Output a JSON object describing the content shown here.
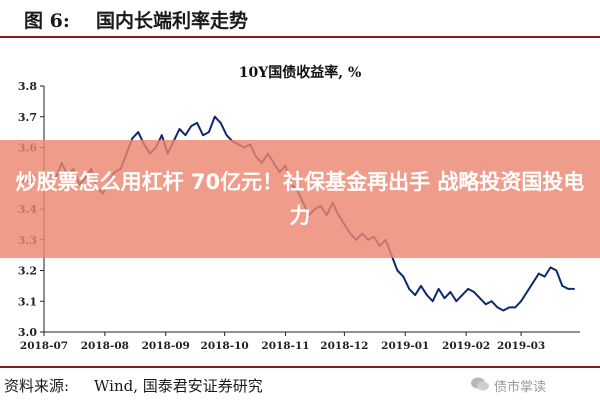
{
  "header": {
    "figure_number": "图 6:",
    "figure_title": "国内长端利率走势"
  },
  "banner": {
    "text": "炒股票怎么用杠杆 70亿元！社保基金再出手 战略投资国投电力"
  },
  "footer": {
    "source_label": "资料来源:",
    "source_value": "Wind, 国泰君安证券研究",
    "watermark": "债市掌读"
  },
  "colors": {
    "series": "#0e2a6e",
    "rule": "#8a1a1a",
    "banner": "#eb8670"
  },
  "chart_data": {
    "type": "line",
    "title": "10Y国债收益率, %",
    "xlabel": "",
    "ylabel": "",
    "ylim": [
      3.0,
      3.8
    ],
    "yticks": [
      "3.0",
      "3.1",
      "3.2",
      "3.3",
      "3.4",
      "3.5",
      "3.6",
      "3.7",
      "3.8"
    ],
    "xlim": [
      "2018-07-01",
      "2019-03-31"
    ],
    "xticks": [
      "2018-07",
      "2018-08",
      "2018-09",
      "2018-10",
      "2018-11",
      "2018-12",
      "2019-01",
      "2019-02",
      "2019-03"
    ],
    "grid": false,
    "series": [
      {
        "x": [
          "2018-07-01",
          "2018-07-04",
          "2018-07-07",
          "2018-07-10",
          "2018-07-13",
          "2018-07-16",
          "2018-07-19",
          "2018-07-22",
          "2018-07-25",
          "2018-07-28",
          "2018-07-31",
          "2018-08-03",
          "2018-08-06",
          "2018-08-09",
          "2018-08-12",
          "2018-08-15",
          "2018-08-18",
          "2018-08-21",
          "2018-08-24",
          "2018-08-27",
          "2018-08-30",
          "2018-09-02",
          "2018-09-05",
          "2018-09-08",
          "2018-09-11",
          "2018-09-14",
          "2018-09-17",
          "2018-09-20",
          "2018-09-23",
          "2018-09-26",
          "2018-09-29",
          "2018-10-02",
          "2018-10-05",
          "2018-10-08",
          "2018-10-11",
          "2018-10-14",
          "2018-10-17",
          "2018-10-20",
          "2018-10-23",
          "2018-10-26",
          "2018-10-29",
          "2018-11-01",
          "2018-11-04",
          "2018-11-07",
          "2018-11-10",
          "2018-11-13",
          "2018-11-16",
          "2018-11-19",
          "2018-11-22",
          "2018-11-25",
          "2018-11-28",
          "2018-12-01",
          "2018-12-04",
          "2018-12-07",
          "2018-12-10",
          "2018-12-13",
          "2018-12-16",
          "2018-12-19",
          "2018-12-22",
          "2018-12-25",
          "2018-12-28",
          "2018-12-31",
          "2019-01-03",
          "2019-01-06",
          "2019-01-09",
          "2019-01-12",
          "2019-01-15",
          "2019-01-18",
          "2019-01-21",
          "2019-01-24",
          "2019-01-27",
          "2019-01-30",
          "2019-02-02",
          "2019-02-05",
          "2019-02-08",
          "2019-02-11",
          "2019-02-14",
          "2019-02-17",
          "2019-02-20",
          "2019-02-23",
          "2019-02-26",
          "2019-03-01",
          "2019-03-04",
          "2019-03-07",
          "2019-03-10",
          "2019-03-13",
          "2019-03-16",
          "2019-03-19",
          "2019-03-22",
          "2019-03-25",
          "2019-03-28"
        ],
        "values": [
          3.48,
          3.52,
          3.5,
          3.55,
          3.51,
          3.53,
          3.48,
          3.5,
          3.53,
          3.47,
          3.45,
          3.49,
          3.52,
          3.53,
          3.58,
          3.63,
          3.65,
          3.61,
          3.58,
          3.6,
          3.64,
          3.58,
          3.62,
          3.66,
          3.64,
          3.67,
          3.68,
          3.64,
          3.65,
          3.7,
          3.68,
          3.64,
          3.62,
          3.61,
          3.6,
          3.61,
          3.57,
          3.55,
          3.58,
          3.55,
          3.52,
          3.54,
          3.48,
          3.46,
          3.42,
          3.38,
          3.4,
          3.41,
          3.38,
          3.42,
          3.38,
          3.35,
          3.32,
          3.3,
          3.32,
          3.3,
          3.31,
          3.28,
          3.3,
          3.25,
          3.2,
          3.18,
          3.14,
          3.12,
          3.15,
          3.12,
          3.1,
          3.14,
          3.11,
          3.13,
          3.1,
          3.12,
          3.14,
          3.13,
          3.11,
          3.09,
          3.1,
          3.08,
          3.07,
          3.08,
          3.08,
          3.1,
          3.13,
          3.16,
          3.19,
          3.18,
          3.21,
          3.2,
          3.15,
          3.14,
          3.14
        ]
      }
    ]
  }
}
